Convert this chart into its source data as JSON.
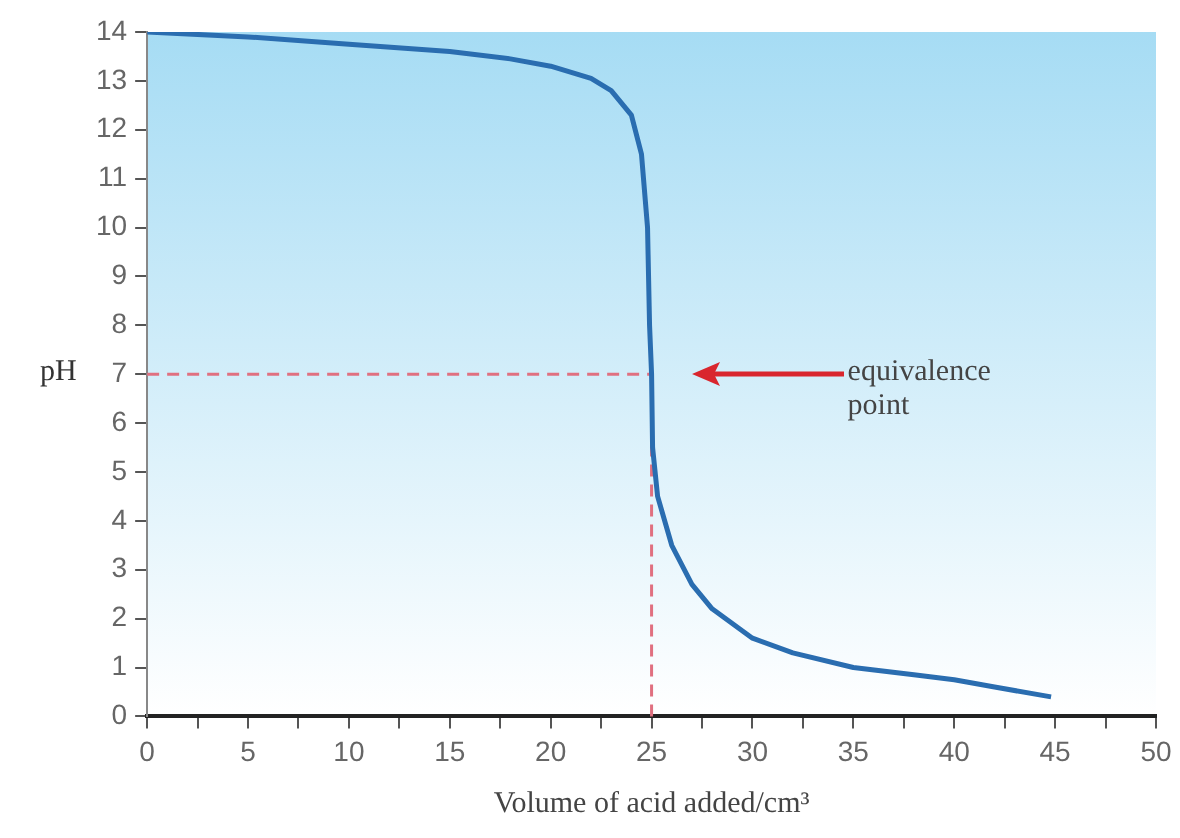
{
  "chart_data": {
    "type": "line",
    "xlabel": "Volume of acid added/cm³",
    "ylabel": "pH",
    "xlim": [
      0,
      50
    ],
    "ylim": [
      0,
      14
    ],
    "xticks": [
      0,
      {
        "value": 2.5,
        "label": null
      },
      5,
      {
        "value": 7.5,
        "label": null
      },
      10,
      {
        "value": 12.5,
        "label": null
      },
      15,
      {
        "value": 17.5,
        "label": null
      },
      20,
      {
        "value": 22.5,
        "label": null
      },
      25,
      {
        "value": 27.5,
        "label": null
      },
      30,
      {
        "value": 32.5,
        "label": null
      },
      35,
      {
        "value": 37.5,
        "label": null
      },
      40,
      {
        "value": 42.5,
        "label": null
      },
      45,
      {
        "value": 47.5,
        "label": null
      },
      50
    ],
    "yticks": [
      0,
      1,
      2,
      3,
      4,
      5,
      6,
      7,
      8,
      9,
      10,
      11,
      12,
      13,
      14
    ],
    "marker": "none",
    "line_style": "solid",
    "series": [
      {
        "color": "#2a6db0",
        "x": [
          0,
          5,
          10,
          15,
          18,
          20,
          22,
          23,
          24,
          24.5,
          24.8,
          24.9,
          25,
          25.05,
          25.3,
          26,
          27,
          28,
          30,
          32,
          35,
          38,
          40,
          42,
          44.8
        ],
        "values": [
          14,
          13.9,
          13.75,
          13.6,
          13.45,
          13.3,
          13.05,
          12.8,
          12.3,
          11.5,
          10,
          8,
          7,
          5.5,
          4.5,
          3.5,
          2.7,
          2.2,
          1.6,
          1.3,
          1.0,
          0.85,
          0.75,
          0.6,
          0.4
        ]
      }
    ],
    "ref_lines": [
      {
        "axis": "y",
        "value": 7,
        "color": "#e07080",
        "line_style": "dashed"
      },
      {
        "axis": "x",
        "value": 25,
        "color": "#e07080",
        "line_style": "dashed"
      }
    ],
    "annotations": [
      "equivalence point"
    ]
  }
}
